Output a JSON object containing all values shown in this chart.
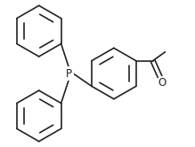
{
  "bg_color": "#ffffff",
  "line_color": "#222222",
  "line_width": 1.2,
  "P_label": "P",
  "O_label": "O",
  "fig_width": 2.19,
  "fig_height": 1.66,
  "font_size": 7.5,
  "dpi": 100
}
